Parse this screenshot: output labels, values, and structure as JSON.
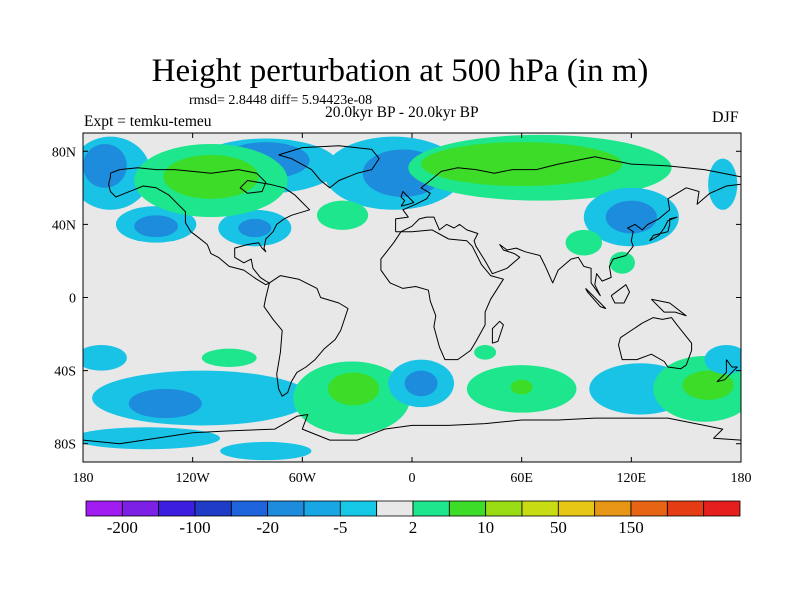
{
  "header": {
    "title": "Height perturbation at 500 hPa (in m)",
    "stats": "rmsd= 2.8448 diff= 5.94423e-08",
    "period": "20.0kyr BP - 20.0kyr BP",
    "experiment": "Expt = temku-temeu",
    "season": "DJF"
  },
  "chart_data": {
    "type": "heatmap",
    "title": "Height perturbation at 500 hPa (in m)",
    "xlabel": "",
    "ylabel": "",
    "xlim": [
      -180,
      180
    ],
    "ylim": [
      -90,
      90
    ],
    "x_ticks": [
      {
        "value": -180,
        "label": "180"
      },
      {
        "value": -120,
        "label": "120W"
      },
      {
        "value": -60,
        "label": "60W"
      },
      {
        "value": 0,
        "label": "0"
      },
      {
        "value": 60,
        "label": "60E"
      },
      {
        "value": 120,
        "label": "120E"
      },
      {
        "value": 180,
        "label": "180"
      }
    ],
    "y_ticks": [
      {
        "value": 80,
        "label": "80N"
      },
      {
        "value": 40,
        "label": "40N"
      },
      {
        "value": 0,
        "label": "0"
      },
      {
        "value": -40,
        "label": "40S"
      },
      {
        "value": -80,
        "label": "80S"
      }
    ],
    "colorbar": {
      "colors": [
        "#a01cf0",
        "#7d20e6",
        "#3c1ee0",
        "#1e3cc8",
        "#1e64dc",
        "#1e8cdc",
        "#19a6e4",
        "#14c8e6",
        "#e8e8e8",
        "#1ee68c",
        "#3cdc28",
        "#9adc14",
        "#c8dc14",
        "#e6c814",
        "#e69614",
        "#e66414",
        "#e63c14",
        "#e61e1e"
      ],
      "labels": [
        {
          "boundary": 1,
          "text": "-200"
        },
        {
          "boundary": 3,
          "text": "-100"
        },
        {
          "boundary": 5,
          "text": "-20"
        },
        {
          "boundary": 7,
          "text": "-5"
        },
        {
          "boundary": 9,
          "text": "2"
        },
        {
          "boundary": 11,
          "text": "10"
        },
        {
          "boundary": 13,
          "text": "50"
        },
        {
          "boundary": 15,
          "text": "150"
        }
      ]
    },
    "regions": [
      {
        "level": "light-blue",
        "color": "#19c3e6",
        "lon": -165,
        "lat": 68,
        "rlon": 22,
        "rlat": 20
      },
      {
        "level": "blue",
        "color": "#1e8cdc",
        "lon": -168,
        "lat": 72,
        "rlon": 12,
        "rlat": 12
      },
      {
        "level": "light-blue",
        "color": "#19c3e6",
        "lon": -80,
        "lat": 72,
        "rlon": 40,
        "rlat": 15
      },
      {
        "level": "blue",
        "color": "#1e8cdc",
        "lon": -80,
        "lat": 75,
        "rlon": 24,
        "rlat": 10
      },
      {
        "level": "light-blue",
        "color": "#19c3e6",
        "lon": -10,
        "lat": 68,
        "rlon": 38,
        "rlat": 20
      },
      {
        "level": "blue",
        "color": "#1e8cdc",
        "lon": -5,
        "lat": 68,
        "rlon": 22,
        "rlat": 13
      },
      {
        "level": "light-blue",
        "color": "#19c3e6",
        "lon": -140,
        "lat": 40,
        "rlon": 22,
        "rlat": 10
      },
      {
        "level": "blue",
        "color": "#1e8cdc",
        "lon": -140,
        "lat": 39,
        "rlon": 12,
        "rlat": 6
      },
      {
        "level": "light-blue",
        "color": "#19c3e6",
        "lon": -86,
        "lat": 38,
        "rlon": 20,
        "rlat": 10
      },
      {
        "level": "blue",
        "color": "#1e8cdc",
        "lon": -86,
        "lat": 38,
        "rlon": 9,
        "rlat": 5
      },
      {
        "level": "green-light",
        "color": "#1ee68c",
        "lon": -110,
        "lat": 64,
        "rlon": 42,
        "rlat": 20
      },
      {
        "level": "green",
        "color": "#3cdc28",
        "lon": -110,
        "lat": 66,
        "rlon": 26,
        "rlat": 12
      },
      {
        "level": "green-light",
        "color": "#1ee68c",
        "lon": -38,
        "lat": 45,
        "rlon": 14,
        "rlat": 8
      },
      {
        "level": "green-light",
        "color": "#1ee68c",
        "lon": 70,
        "lat": 71,
        "rlon": 72,
        "rlat": 18
      },
      {
        "level": "green",
        "color": "#3cdc28",
        "lon": 60,
        "lat": 73,
        "rlon": 55,
        "rlat": 12
      },
      {
        "level": "light-blue",
        "color": "#19c3e6",
        "lon": 120,
        "lat": 44,
        "rlon": 26,
        "rlat": 16
      },
      {
        "level": "blue",
        "color": "#1e8cdc",
        "lon": 120,
        "lat": 44,
        "rlon": 14,
        "rlat": 9
      },
      {
        "level": "green-light",
        "color": "#1ee68c",
        "lon": 94,
        "lat": 30,
        "rlon": 10,
        "rlat": 7
      },
      {
        "level": "green-light",
        "color": "#1ee68c",
        "lon": 115,
        "lat": 19,
        "rlon": 7,
        "rlat": 6
      },
      {
        "level": "light-blue",
        "color": "#19c3e6",
        "lon": 170,
        "lat": 62,
        "rlon": 8,
        "rlat": 14
      },
      {
        "level": "light-blue",
        "color": "#19c3e6",
        "lon": -170,
        "lat": -33,
        "rlon": 14,
        "rlat": 7
      },
      {
        "level": "green-light",
        "color": "#1ee68c",
        "lon": -100,
        "lat": -33,
        "rlon": 15,
        "rlat": 5
      },
      {
        "level": "light-blue",
        "color": "#19c3e6",
        "lon": -115,
        "lat": -55,
        "rlon": 60,
        "rlat": 15
      },
      {
        "level": "blue",
        "color": "#1e8cdc",
        "lon": -135,
        "lat": -58,
        "rlon": 20,
        "rlat": 8
      },
      {
        "level": "green-light",
        "color": "#1ee68c",
        "lon": -33,
        "lat": -55,
        "rlon": 32,
        "rlat": 20
      },
      {
        "level": "green",
        "color": "#3cdc28",
        "lon": -32,
        "lat": -50,
        "rlon": 14,
        "rlat": 9
      },
      {
        "level": "light-blue",
        "color": "#19c3e6",
        "lon": 5,
        "lat": -47,
        "rlon": 18,
        "rlat": 13
      },
      {
        "level": "blue",
        "color": "#1e8cdc",
        "lon": 5,
        "lat": -47,
        "rlon": 9,
        "rlat": 7
      },
      {
        "level": "green-light",
        "color": "#1ee68c",
        "lon": 60,
        "lat": -50,
        "rlon": 30,
        "rlat": 13
      },
      {
        "level": "green",
        "color": "#3cdc28",
        "lon": 60,
        "lat": -49,
        "rlon": 6,
        "rlat": 4
      },
      {
        "level": "green-light",
        "color": "#1ee68c",
        "lon": 40,
        "lat": -30,
        "rlon": 6,
        "rlat": 4
      },
      {
        "level": "light-blue",
        "color": "#19c3e6",
        "lon": 125,
        "lat": -50,
        "rlon": 28,
        "rlat": 14
      },
      {
        "level": "green-light",
        "color": "#1ee68c",
        "lon": 160,
        "lat": -50,
        "rlon": 28,
        "rlat": 18
      },
      {
        "level": "green",
        "color": "#3cdc28",
        "lon": 162,
        "lat": -48,
        "rlon": 14,
        "rlat": 8
      },
      {
        "level": "light-blue",
        "color": "#19c3e6",
        "lon": 172,
        "lat": -34,
        "rlon": 12,
        "rlat": 8
      },
      {
        "level": "light-blue",
        "color": "#19c3e6",
        "lon": -145,
        "lat": -77,
        "rlon": 40,
        "rlat": 6
      },
      {
        "level": "light-blue",
        "color": "#19c3e6",
        "lon": -80,
        "lat": -84,
        "rlon": 25,
        "rlat": 5
      }
    ]
  }
}
